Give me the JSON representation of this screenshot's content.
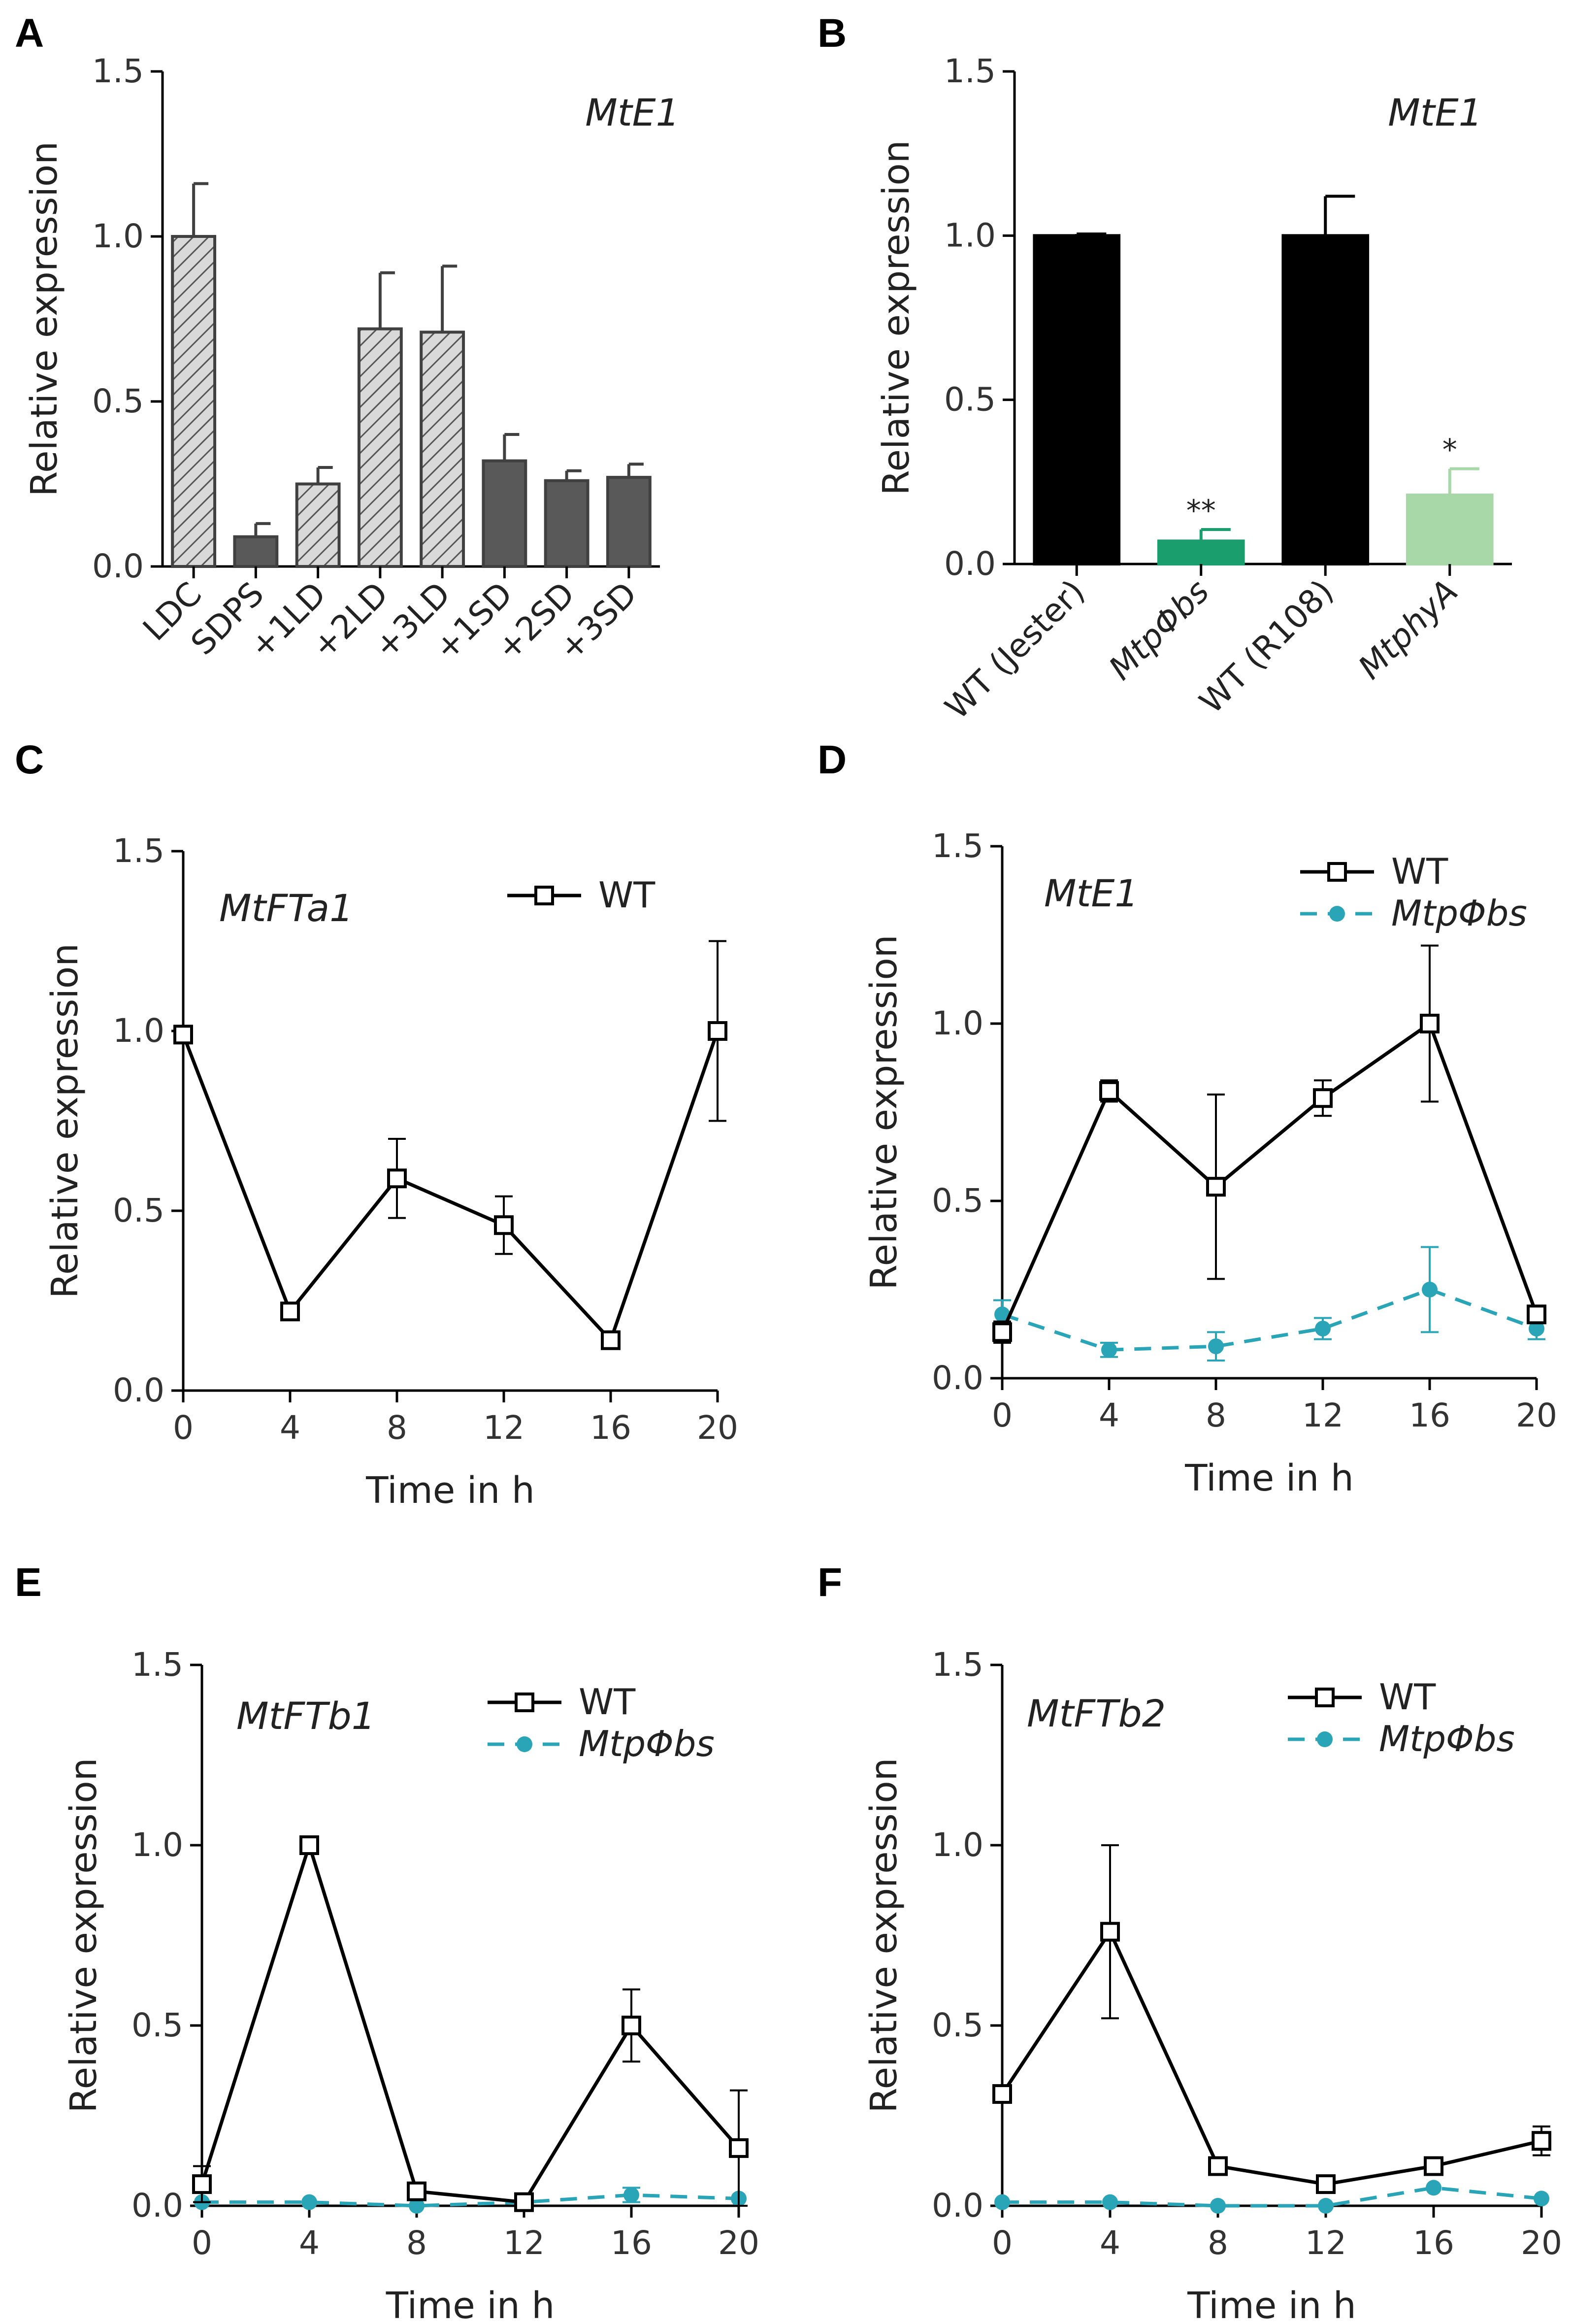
{
  "figure": {
    "panels": [
      "A",
      "B",
      "C",
      "D",
      "E",
      "F"
    ]
  },
  "chart_data": [
    {
      "panel": "A",
      "type": "bar",
      "title": "MtE1",
      "ylabel": "Relative expression",
      "xlabel": "",
      "ylim": [
        0,
        1.5
      ],
      "yticks": [
        "0.0",
        "0.5",
        "1.0",
        "1.5"
      ],
      "categories": [
        "LDC",
        "SDPS",
        "+1LD",
        "+2LD",
        "+3LD",
        "+1SD",
        "+2SD",
        "+3SD"
      ],
      "values": [
        1.0,
        0.09,
        0.25,
        0.72,
        0.71,
        0.32,
        0.26,
        0.27
      ],
      "errors": [
        0.16,
        0.04,
        0.05,
        0.17,
        0.2,
        0.08,
        0.03,
        0.04
      ],
      "fills": [
        "hatch",
        "solid",
        "hatch",
        "hatch",
        "hatch",
        "solid",
        "solid",
        "solid"
      ],
      "colors": {
        "hatch": "#d9d9d9",
        "solid": "#595959",
        "edge": "#404040"
      }
    },
    {
      "panel": "B",
      "type": "bar",
      "title": "MtE1",
      "ylabel": "Relative expression",
      "xlabel": "",
      "ylim": [
        0,
        1.5
      ],
      "yticks": [
        "0.0",
        "0.5",
        "1.0",
        "1.5"
      ],
      "categories": [
        "WT (Jester)",
        "MtpΦbs",
        "WT (R108)",
        "MtphyA"
      ],
      "italic_categories": [
        false,
        true,
        false,
        true
      ],
      "values": [
        1.0,
        0.07,
        1.0,
        0.21
      ],
      "errors": [
        0.005,
        0.035,
        0.12,
        0.08
      ],
      "significance": [
        "",
        "**",
        "",
        "*"
      ],
      "colors": [
        "#000000",
        "#1a9e6e",
        "#000000",
        "#a8d8a8"
      ]
    },
    {
      "panel": "C",
      "type": "line",
      "title": "MtFTa1",
      "ylabel": "Relative expression",
      "xlabel": "Time in h",
      "ylim": [
        0,
        1.5
      ],
      "yticks": [
        "0.0",
        "0.5",
        "1.0",
        "1.5"
      ],
      "x": [
        0,
        4,
        8,
        12,
        16,
        20
      ],
      "xticks": [
        "0",
        "4",
        "8",
        "12",
        "16",
        "20"
      ],
      "series": [
        {
          "name": "WT",
          "values": [
            0.99,
            0.22,
            0.59,
            0.46,
            0.14,
            1.0
          ],
          "errors": [
            0.0,
            0.0,
            0.11,
            0.08,
            0.0,
            0.25
          ],
          "color": "#000000",
          "style": "solid",
          "marker": "square"
        }
      ]
    },
    {
      "panel": "D",
      "type": "line",
      "title": "MtE1",
      "ylabel": "Relative expression",
      "xlabel": "Time in h",
      "ylim": [
        0,
        1.5
      ],
      "yticks": [
        "0.0",
        "0.5",
        "1.0",
        "1.5"
      ],
      "x": [
        0,
        4,
        8,
        12,
        16,
        20
      ],
      "xticks": [
        "0",
        "4",
        "8",
        "12",
        "16",
        "20"
      ],
      "series": [
        {
          "name": "WT",
          "values": [
            0.13,
            0.81,
            0.54,
            0.79,
            1.0,
            0.18
          ],
          "errors": [
            0.03,
            0.03,
            0.26,
            0.05,
            0.22,
            0.02
          ],
          "color": "#000000",
          "style": "solid",
          "marker": "square"
        },
        {
          "name": "MtpΦbs",
          "values": [
            0.18,
            0.08,
            0.09,
            0.14,
            0.25,
            0.14
          ],
          "errors": [
            0.04,
            0.02,
            0.04,
            0.03,
            0.12,
            0.03
          ],
          "color": "#2aa5b8",
          "style": "dashed",
          "marker": "circle"
        }
      ]
    },
    {
      "panel": "E",
      "type": "line",
      "title": "MtFTb1",
      "ylabel": "Relative expression",
      "xlabel": "Time in h",
      "ylim": [
        0,
        1.5
      ],
      "yticks": [
        "0.0",
        "0.5",
        "1.0",
        "1.5"
      ],
      "x": [
        0,
        4,
        8,
        12,
        16,
        20
      ],
      "xticks": [
        "0",
        "4",
        "8",
        "12",
        "16",
        "20"
      ],
      "series": [
        {
          "name": "WT",
          "values": [
            0.06,
            1.0,
            0.04,
            0.01,
            0.5,
            0.16
          ],
          "errors": [
            0.05,
            0.0,
            0.0,
            0.0,
            0.1,
            0.16
          ],
          "color": "#000000",
          "style": "solid",
          "marker": "square"
        },
        {
          "name": "MtpΦbs",
          "values": [
            0.01,
            0.01,
            0.0,
            0.01,
            0.03,
            0.02
          ],
          "errors": [
            0.0,
            0.0,
            0.0,
            0.0,
            0.02,
            0.0
          ],
          "color": "#2aa5b8",
          "style": "dashed",
          "marker": "circle"
        }
      ]
    },
    {
      "panel": "F",
      "type": "line",
      "title": "MtFTb2",
      "ylabel": "Relative expression",
      "xlabel": "Time in h",
      "ylim": [
        0,
        1.5
      ],
      "yticks": [
        "0.0",
        "0.5",
        "1.0",
        "1.5"
      ],
      "x": [
        0,
        4,
        8,
        12,
        16,
        20
      ],
      "xticks": [
        "0",
        "4",
        "8",
        "12",
        "16",
        "20"
      ],
      "series": [
        {
          "name": "WT",
          "values": [
            0.31,
            0.76,
            0.11,
            0.06,
            0.11,
            0.18
          ],
          "errors": [
            0.0,
            0.24,
            0.0,
            0.0,
            0.0,
            0.04
          ],
          "color": "#000000",
          "style": "solid",
          "marker": "square"
        },
        {
          "name": "MtpΦbs",
          "values": [
            0.01,
            0.01,
            0.0,
            0.0,
            0.05,
            0.02
          ],
          "errors": [
            0.0,
            0.0,
            0.0,
            0.0,
            0.0,
            0.0
          ],
          "color": "#2aa5b8",
          "style": "dashed",
          "marker": "circle"
        }
      ]
    }
  ]
}
